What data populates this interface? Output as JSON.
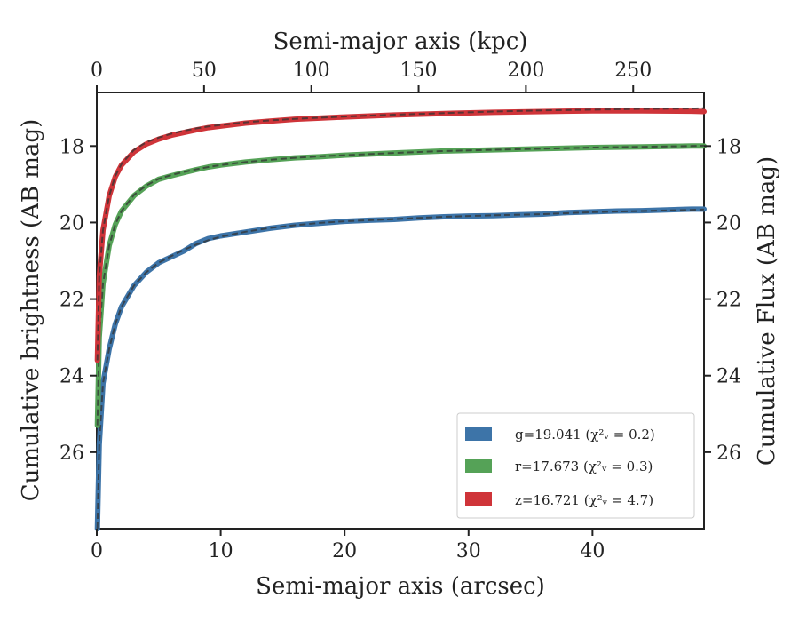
{
  "chart_data": {
    "type": "line",
    "x_axis": {
      "label": "Semi-major axis (arcsec)",
      "range": [
        0,
        49
      ],
      "ticks": [
        0,
        10,
        20,
        30,
        40
      ]
    },
    "top_axis": {
      "label": "Semi-major axis (kpc)",
      "range": [
        0,
        283
      ],
      "ticks": [
        0,
        50,
        100,
        150,
        200,
        250
      ]
    },
    "y_axis": {
      "label": "Cumulative brightness (AB mag)",
      "range": [
        28.0,
        16.6
      ],
      "inverted": true,
      "ticks": [
        18,
        20,
        22,
        24,
        26
      ]
    },
    "y2_axis": {
      "label": "Cumulative Flux (AB mag)",
      "range": [
        28.0,
        16.6
      ],
      "inverted": true,
      "ticks": [
        18,
        20,
        22,
        24,
        26
      ]
    },
    "grid": false,
    "legend": {
      "position": "lower-right"
    },
    "series": [
      {
        "name": "g=19.041 ($\\chi^2_\\nu = 0.2$)",
        "legend_label": "g=19.041 (χ²ᵥ = 0.2)",
        "color": "#3d74a8",
        "points": [
          [
            0.05,
            28.0
          ],
          [
            0.2,
            25.8
          ],
          [
            0.5,
            24.2
          ],
          [
            1,
            23.3
          ],
          [
            1.5,
            22.65
          ],
          [
            2,
            22.2
          ],
          [
            3,
            21.65
          ],
          [
            4,
            21.3
          ],
          [
            5,
            21.05
          ],
          [
            6,
            20.9
          ],
          [
            7,
            20.75
          ],
          [
            8,
            20.55
          ],
          [
            9,
            20.42
          ],
          [
            10,
            20.35
          ],
          [
            12,
            20.25
          ],
          [
            14,
            20.15
          ],
          [
            16,
            20.07
          ],
          [
            18,
            20.02
          ],
          [
            20,
            19.97
          ],
          [
            22,
            19.94
          ],
          [
            24,
            19.92
          ],
          [
            26,
            19.88
          ],
          [
            28,
            19.85
          ],
          [
            30,
            19.83
          ],
          [
            32,
            19.82
          ],
          [
            34,
            19.8
          ],
          [
            36,
            19.78
          ],
          [
            38,
            19.74
          ],
          [
            40,
            19.72
          ],
          [
            42,
            19.7
          ],
          [
            44,
            19.69
          ],
          [
            46,
            19.67
          ],
          [
            48,
            19.65
          ],
          [
            49,
            19.65
          ]
        ],
        "model": [
          [
            0.05,
            28.0
          ],
          [
            0.2,
            25.8
          ],
          [
            0.5,
            24.2
          ],
          [
            1,
            23.3
          ],
          [
            1.5,
            22.65
          ],
          [
            2,
            22.2
          ],
          [
            3,
            21.65
          ],
          [
            4,
            21.3
          ],
          [
            5,
            21.05
          ],
          [
            6,
            20.88
          ],
          [
            7,
            20.72
          ],
          [
            8,
            20.58
          ],
          [
            9,
            20.46
          ],
          [
            10,
            20.37
          ],
          [
            12,
            20.24
          ],
          [
            14,
            20.14
          ],
          [
            16,
            20.07
          ],
          [
            18,
            20.01
          ],
          [
            20,
            19.97
          ],
          [
            24,
            19.91
          ],
          [
            28,
            19.85
          ],
          [
            32,
            19.81
          ],
          [
            36,
            19.78
          ],
          [
            40,
            19.73
          ],
          [
            44,
            19.7
          ],
          [
            48,
            19.67
          ],
          [
            49,
            19.66
          ]
        ]
      },
      {
        "name": "r=17.673 ($\\chi^2_\\nu = 0.3$)",
        "legend_label": "r=17.673 (χ²ᵥ = 0.3)",
        "color": "#55a257",
        "points": [
          [
            0.05,
            25.3
          ],
          [
            0.2,
            23.0
          ],
          [
            0.5,
            21.6
          ],
          [
            1,
            20.6
          ],
          [
            1.5,
            20.05
          ],
          [
            2,
            19.7
          ],
          [
            3,
            19.3
          ],
          [
            4,
            19.05
          ],
          [
            5,
            18.87
          ],
          [
            6,
            18.78
          ],
          [
            7,
            18.7
          ],
          [
            8,
            18.62
          ],
          [
            9,
            18.55
          ],
          [
            10,
            18.5
          ],
          [
            12,
            18.42
          ],
          [
            14,
            18.36
          ],
          [
            16,
            18.31
          ],
          [
            18,
            18.28
          ],
          [
            20,
            18.24
          ],
          [
            24,
            18.18
          ],
          [
            28,
            18.13
          ],
          [
            32,
            18.1
          ],
          [
            36,
            18.07
          ],
          [
            40,
            18.04
          ],
          [
            44,
            18.02
          ],
          [
            48,
            18.0
          ],
          [
            49,
            18.0
          ]
        ],
        "model": [
          [
            0.05,
            25.3
          ],
          [
            0.2,
            23.0
          ],
          [
            0.5,
            21.6
          ],
          [
            1,
            20.6
          ],
          [
            1.5,
            20.05
          ],
          [
            2,
            19.7
          ],
          [
            3,
            19.28
          ],
          [
            4,
            19.03
          ],
          [
            5,
            18.86
          ],
          [
            6,
            18.76
          ],
          [
            7,
            18.68
          ],
          [
            8,
            18.61
          ],
          [
            9,
            18.55
          ],
          [
            10,
            18.5
          ],
          [
            12,
            18.42
          ],
          [
            14,
            18.36
          ],
          [
            16,
            18.31
          ],
          [
            18,
            18.27
          ],
          [
            20,
            18.24
          ],
          [
            24,
            18.18
          ],
          [
            28,
            18.13
          ],
          [
            32,
            18.1
          ],
          [
            36,
            18.07
          ],
          [
            40,
            18.04
          ],
          [
            44,
            18.02
          ],
          [
            48,
            18.0
          ],
          [
            49,
            17.99
          ]
        ]
      },
      {
        "name": "z=16.721 ($\\chi^2_\\nu = 4.7$)",
        "legend_label": "z=16.721 (χ²ᵥ = 4.7)",
        "color": "#cf3439",
        "points": [
          [
            0.05,
            23.6
          ],
          [
            0.2,
            21.4
          ],
          [
            0.5,
            20.2
          ],
          [
            1,
            19.3
          ],
          [
            1.5,
            18.8
          ],
          [
            2,
            18.5
          ],
          [
            3,
            18.15
          ],
          [
            4,
            17.95
          ],
          [
            5,
            17.82
          ],
          [
            6,
            17.72
          ],
          [
            7,
            17.65
          ],
          [
            8,
            17.58
          ],
          [
            9,
            17.52
          ],
          [
            10,
            17.48
          ],
          [
            12,
            17.4
          ],
          [
            14,
            17.35
          ],
          [
            16,
            17.3
          ],
          [
            18,
            17.27
          ],
          [
            20,
            17.24
          ],
          [
            24,
            17.19
          ],
          [
            28,
            17.15
          ],
          [
            32,
            17.12
          ],
          [
            36,
            17.1
          ],
          [
            40,
            17.08
          ],
          [
            44,
            17.08
          ],
          [
            48,
            17.09
          ],
          [
            49,
            17.1
          ]
        ],
        "model": [
          [
            0.05,
            23.6
          ],
          [
            0.2,
            21.4
          ],
          [
            0.5,
            20.2
          ],
          [
            1,
            19.3
          ],
          [
            1.5,
            18.78
          ],
          [
            2,
            18.47
          ],
          [
            3,
            18.1
          ],
          [
            4,
            17.9
          ],
          [
            5,
            17.78
          ],
          [
            6,
            17.68
          ],
          [
            7,
            17.6
          ],
          [
            8,
            17.54
          ],
          [
            9,
            17.49
          ],
          [
            10,
            17.45
          ],
          [
            12,
            17.38
          ],
          [
            14,
            17.33
          ],
          [
            16,
            17.29
          ],
          [
            18,
            17.26
          ],
          [
            20,
            17.23
          ],
          [
            24,
            17.18
          ],
          [
            28,
            17.14
          ],
          [
            32,
            17.1
          ],
          [
            36,
            17.07
          ],
          [
            40,
            17.05
          ],
          [
            44,
            17.03
          ],
          [
            48,
            17.02
          ],
          [
            49,
            17.01
          ]
        ]
      }
    ],
    "model_line_style": "dashed, dark gray"
  }
}
